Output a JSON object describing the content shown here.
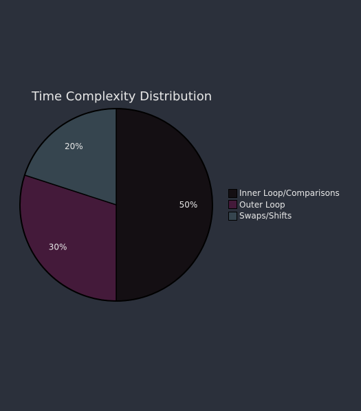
{
  "chart_data": {
    "type": "pie",
    "title": "Time Complexity Distribution",
    "categories": [
      "Inner Loop/Comparisons",
      "Outer Loop",
      "Swaps/Shifts"
    ],
    "values": [
      50,
      30,
      20
    ],
    "labels": [
      "50%",
      "30%",
      "20%"
    ],
    "colors": [
      "#140f13",
      "#441a3a",
      "#36454f"
    ],
    "legend_position": "right"
  },
  "colors": {
    "background": "#2b303b",
    "text": "#e6e6e6",
    "slice_border": "#000000"
  }
}
